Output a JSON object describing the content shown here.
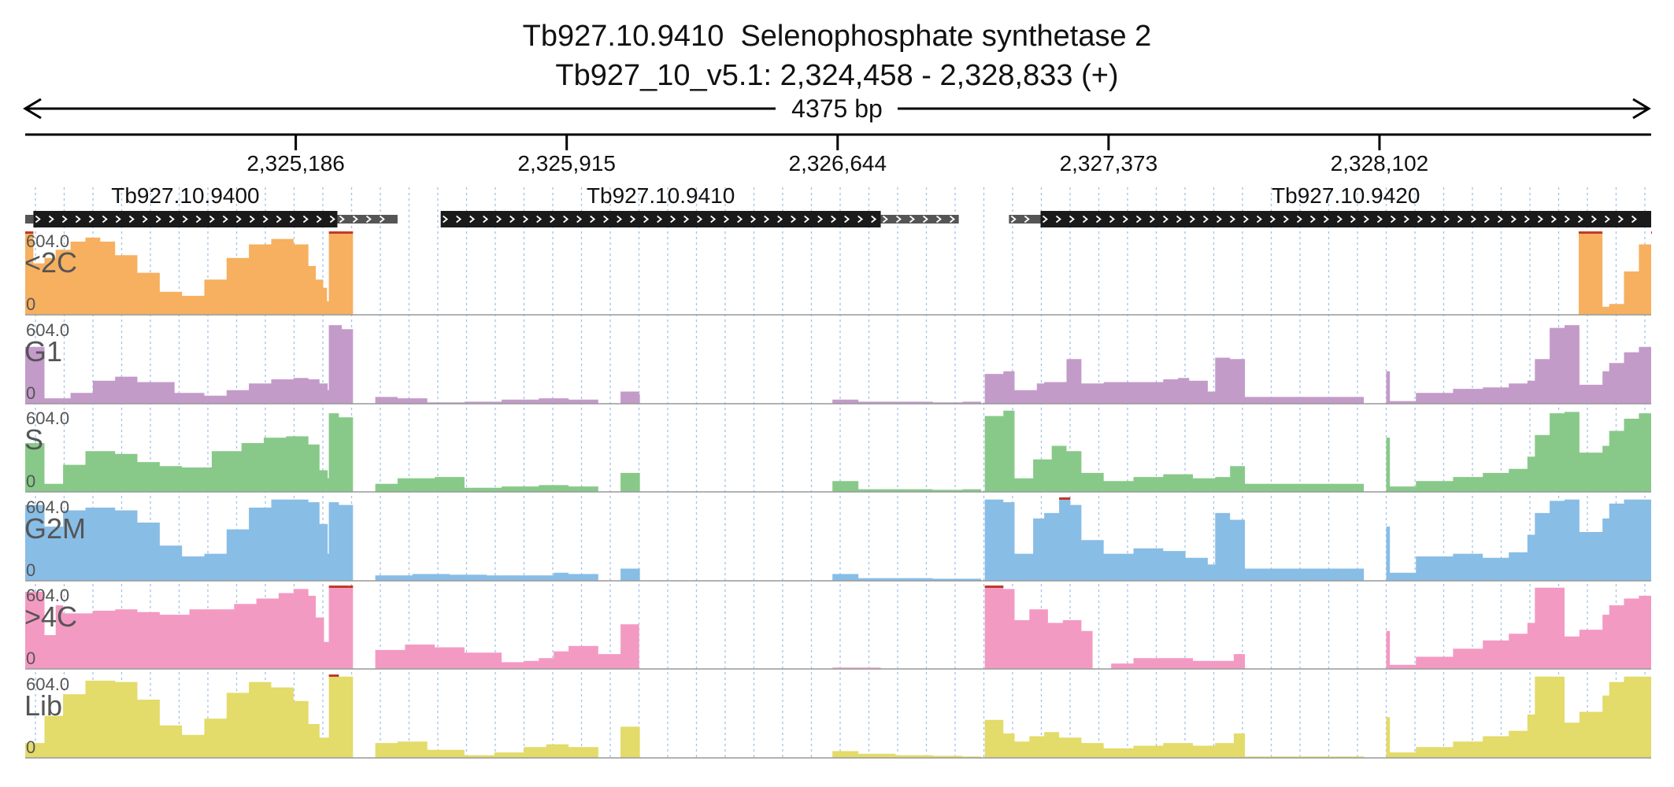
{
  "chart_data": {
    "type": "area",
    "title": "Tb927.10.9410  Selenophosphate synthetase 2",
    "subtitle": "Tb927_10_v5.1: 2,324,458 - 2,328,833 (+)",
    "span_label": "4375 bp",
    "x_range": [
      2324458,
      2328833
    ],
    "ticks": [
      {
        "value": 2325186,
        "label": "2,325,186"
      },
      {
        "value": 2325915,
        "label": "2,325,915"
      },
      {
        "value": 2326644,
        "label": "2,326,644"
      },
      {
        "value": 2327373,
        "label": "2,327,373"
      },
      {
        "value": 2328102,
        "label": "2,328,102"
      }
    ],
    "genes": [
      {
        "name": "Tb927.10.9400",
        "cds": [
          2324480,
          2325298
        ],
        "utr": [
          [
            2324458,
            2324480
          ],
          [
            2325298,
            2325460
          ]
        ],
        "strand": "+"
      },
      {
        "name": "Tb927.10.9410",
        "cds": [
          2325576,
          2326760
        ],
        "utr": [
          [
            2326760,
            2326970
          ]
        ],
        "strand": "+"
      },
      {
        "name": "Tb927.10.9420",
        "cds": [
          2327190,
          2328833
        ],
        "utr": [
          [
            2327105,
            2327190
          ]
        ],
        "strand": "+"
      }
    ],
    "y_max": 604.0,
    "y_max_label": "604.0",
    "y_min_label": "0",
    "series": [
      {
        "name": "<2C",
        "color": "#f6b060",
        "x": [
          2324458,
          2324475,
          2324480,
          2324510,
          2324540,
          2324580,
          2324620,
          2324660,
          2324700,
          2324760,
          2324820,
          2324880,
          2324940,
          2325000,
          2325060,
          2325120,
          2325180,
          2325220,
          2325240,
          2325260,
          2325270,
          2325275,
          2325330,
          2325340,
          2328638,
          2328700,
          2328702,
          2328720,
          2328760,
          2328800,
          2328833
        ],
        "values": [
          604,
          604,
          380,
          420,
          480,
          540,
          570,
          540,
          440,
          310,
          170,
          140,
          260,
          420,
          520,
          560,
          520,
          360,
          260,
          200,
          100,
          604,
          604,
          0,
          604,
          604,
          60,
          80,
          320,
          520,
          604
        ]
      },
      {
        "name": "G1",
        "color": "#c39bc9",
        "x": [
          2324458,
          2324505,
          2324510,
          2324580,
          2324640,
          2324700,
          2324760,
          2324860,
          2324940,
          2325000,
          2325060,
          2325120,
          2325180,
          2325220,
          2325250,
          2325272,
          2325275,
          2325310,
          2325340,
          2325400,
          2325460,
          2325540,
          2325640,
          2325740,
          2325840,
          2325920,
          2326000,
          2326060,
          2326110,
          2326112,
          2326160,
          2326570,
          2326630,
          2326700,
          2326800,
          2326900,
          2326980,
          2327030,
          2327040,
          2327090,
          2327120,
          2327180,
          2327200,
          2327240,
          2327260,
          2327300,
          2327360,
          2327440,
          2327520,
          2327560,
          2327590,
          2327640,
          2327660,
          2327700,
          2327740,
          2328060,
          2328120,
          2328130,
          2328200,
          2328300,
          2328380,
          2328450,
          2328500,
          2328520,
          2328560,
          2328600,
          2328640,
          2328702,
          2328720,
          2328760,
          2328800,
          2328833
        ],
        "values": [
          420,
          420,
          40,
          80,
          170,
          200,
          160,
          80,
          60,
          100,
          150,
          180,
          190,
          180,
          150,
          100,
          580,
          550,
          0,
          50,
          40,
          10,
          15,
          30,
          40,
          30,
          0,
          90,
          70,
          0,
          0,
          0,
          30,
          15,
          15,
          10,
          15,
          0,
          220,
          240,
          100,
          150,
          160,
          160,
          330,
          150,
          160,
          160,
          180,
          190,
          170,
          90,
          340,
          330,
          50,
          0,
          240,
          20,
          80,
          110,
          120,
          150,
          170,
          330,
          560,
          580,
          140,
          240,
          300,
          380,
          420,
          450
        ]
      },
      {
        "name": "S",
        "color": "#88c98a",
        "x": [
          2324458,
          2324505,
          2324510,
          2324560,
          2324620,
          2324700,
          2324760,
          2324820,
          2324880,
          2324960,
          2325040,
          2325100,
          2325160,
          2325220,
          2325250,
          2325272,
          2325275,
          2325302,
          2325340,
          2325400,
          2325460,
          2325560,
          2325640,
          2325740,
          2325840,
          2325920,
          2326000,
          2326060,
          2326110,
          2326112,
          2326160,
          2326570,
          2326630,
          2326700,
          2326800,
          2326900,
          2326980,
          2327030,
          2327040,
          2327090,
          2327120,
          2327170,
          2327220,
          2327260,
          2327300,
          2327360,
          2327440,
          2327520,
          2327600,
          2327660,
          2327700,
          2327740,
          2328060,
          2328120,
          2328130,
          2328200,
          2328300,
          2328380,
          2328450,
          2328500,
          2328520,
          2328560,
          2328600,
          2328640,
          2328702,
          2328720,
          2328760,
          2328800,
          2328833
        ],
        "values": [
          360,
          360,
          60,
          200,
          300,
          280,
          220,
          190,
          180,
          300,
          360,
          400,
          410,
          350,
          160,
          100,
          580,
          550,
          0,
          60,
          100,
          110,
          30,
          40,
          50,
          40,
          0,
          140,
          140,
          0,
          0,
          0,
          80,
          20,
          20,
          15,
          20,
          0,
          560,
          600,
          100,
          240,
          340,
          300,
          140,
          80,
          110,
          130,
          100,
          110,
          190,
          60,
          0,
          400,
          40,
          80,
          110,
          140,
          170,
          260,
          420,
          580,
          590,
          290,
          340,
          450,
          540,
          580,
          580
        ]
      },
      {
        "name": "G2M",
        "color": "#88bde6",
        "x": [
          2324458,
          2324505,
          2324510,
          2324560,
          2324620,
          2324700,
          2324760,
          2324820,
          2324880,
          2324940,
          2325000,
          2325060,
          2325120,
          2325180,
          2325220,
          2325250,
          2325272,
          2325275,
          2325302,
          2325340,
          2325400,
          2325500,
          2325600,
          2325700,
          2325800,
          2325880,
          2325920,
          2326000,
          2326060,
          2326110,
          2326112,
          2326160,
          2326570,
          2326630,
          2326700,
          2326800,
          2326900,
          2326980,
          2327030,
          2327040,
          2327090,
          2327120,
          2327170,
          2327200,
          2327240,
          2327270,
          2327300,
          2327360,
          2327440,
          2327520,
          2327580,
          2327640,
          2327660,
          2327700,
          2327740,
          2328060,
          2328120,
          2328130,
          2328200,
          2328300,
          2328380,
          2328450,
          2328500,
          2328520,
          2328560,
          2328600,
          2328640,
          2328702,
          2328720,
          2328760,
          2328800,
          2328833
        ],
        "values": [
          560,
          560,
          400,
          520,
          540,
          520,
          430,
          260,
          180,
          200,
          380,
          540,
          600,
          600,
          580,
          420,
          200,
          580,
          560,
          0,
          40,
          50,
          45,
          40,
          40,
          60,
          50,
          0,
          90,
          90,
          0,
          0,
          0,
          50,
          20,
          20,
          15,
          15,
          0,
          600,
          580,
          200,
          460,
          500,
          604,
          560,
          300,
          200,
          240,
          220,
          170,
          120,
          500,
          450,
          90,
          0,
          400,
          60,
          180,
          200,
          170,
          210,
          340,
          500,
          590,
          600,
          360,
          460,
          570,
          600,
          600,
          600
        ]
      },
      {
        "name": ">4C",
        "color": "#f39ac3",
        "x": [
          2324458,
          2324505,
          2324510,
          2324540,
          2324560,
          2324640,
          2324700,
          2324760,
          2324820,
          2324900,
          2324960,
          2325020,
          2325080,
          2325140,
          2325180,
          2325220,
          2325240,
          2325262,
          2325275,
          2325328,
          2325340,
          2325400,
          2325480,
          2325560,
          2325640,
          2325740,
          2325800,
          2325840,
          2325880,
          2325920,
          2326000,
          2326060,
          2326110,
          2326112,
          2326560,
          2326630,
          2326700,
          2326760,
          2327030,
          2327040,
          2327090,
          2327120,
          2327160,
          2327210,
          2327250,
          2327300,
          2327330,
          2327380,
          2327440,
          2327520,
          2327600,
          2327660,
          2327710,
          2327740,
          2328060,
          2328120,
          2328130,
          2328200,
          2328300,
          2328380,
          2328450,
          2328500,
          2328520,
          2328560,
          2328600,
          2328640,
          2328702,
          2328720,
          2328760,
          2328800,
          2328833
        ],
        "values": [
          570,
          570,
          250,
          470,
          410,
          430,
          440,
          420,
          400,
          440,
          440,
          480,
          520,
          560,
          590,
          540,
          380,
          200,
          604,
          604,
          0,
          140,
          180,
          160,
          120,
          50,
          60,
          80,
          130,
          170,
          110,
          330,
          0,
          0,
          0,
          10,
          10,
          0,
          0,
          604,
          590,
          360,
          440,
          340,
          360,
          280,
          0,
          40,
          80,
          80,
          60,
          60,
          110,
          0,
          0,
          280,
          30,
          90,
          150,
          210,
          260,
          340,
          600,
          600,
          240,
          290,
          400,
          470,
          520,
          540,
          540
        ]
      },
      {
        "name": "Lib",
        "color": "#e3db6a",
        "x": [
          2324458,
          2324505,
          2324510,
          2324560,
          2324620,
          2324700,
          2324760,
          2324820,
          2324880,
          2324940,
          2325000,
          2325060,
          2325120,
          2325180,
          2325220,
          2325250,
          2325275,
          2325302,
          2325340,
          2325400,
          2325460,
          2325540,
          2325640,
          2325720,
          2325800,
          2325860,
          2325920,
          2326000,
          2326060,
          2326110,
          2326112,
          2326570,
          2326630,
          2326700,
          2326800,
          2326900,
          2326980,
          2327030,
          2327040,
          2327090,
          2327120,
          2327160,
          2327200,
          2327240,
          2327300,
          2327360,
          2327440,
          2327520,
          2327600,
          2327660,
          2327710,
          2327740,
          2328060,
          2328120,
          2328130,
          2328200,
          2328300,
          2328380,
          2328450,
          2328500,
          2328520,
          2328560,
          2328600,
          2328640,
          2328702,
          2328720,
          2328760,
          2328800,
          2328833
        ],
        "values": [
          110,
          110,
          310,
          470,
          570,
          560,
          430,
          240,
          170,
          290,
          480,
          560,
          520,
          420,
          250,
          150,
          604,
          600,
          0,
          110,
          120,
          60,
          20,
          40,
          80,
          100,
          80,
          0,
          230,
          230,
          0,
          0,
          50,
          30,
          20,
          15,
          10,
          0,
          280,
          180,
          120,
          160,
          190,
          150,
          110,
          70,
          90,
          110,
          90,
          110,
          180,
          10,
          0,
          300,
          40,
          80,
          120,
          160,
          200,
          320,
          600,
          600,
          260,
          340,
          460,
          560,
          600,
          600,
          600
        ]
      }
    ]
  }
}
